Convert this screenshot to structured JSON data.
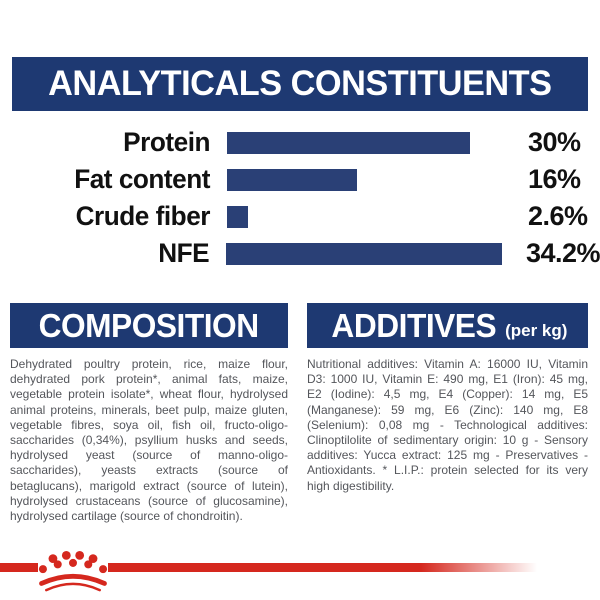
{
  "header": {
    "title": "ANALYTICALS CONSTITUENTS"
  },
  "chart_data": {
    "type": "bar",
    "orientation": "horizontal",
    "title": "ANALYTICALS CONSTITUENTS",
    "categories": [
      "Protein",
      "Fat content",
      "Crude fiber",
      "NFE"
    ],
    "values": [
      30,
      16,
      2.6,
      34.2
    ],
    "value_labels": [
      "30%",
      "16%",
      "2.6%",
      "34.2%"
    ],
    "xlim": [
      0,
      36
    ],
    "grid": false,
    "bar_color": "#2A4076",
    "label_color": "#111111"
  },
  "composition": {
    "title": "COMPOSITION",
    "body": "Dehydrated poultry protein, rice, maize flour, dehydrated pork protein*, animal fats, maize, vegetable protein isolate*, wheat flour, hydrolysed animal proteins, minerals, beet pulp, maize gluten, vegetable fibres, soya oil, fish oil, fructo-oligo-saccharides (0,34%), psyllium husks and seeds, hydrolysed yeast (source of manno-oligo-saccharides), yeasts extracts (source of betaglucans), marigold extract (source of lutein), hydrolysed crustaceans (source of glucosamine), hydrolysed cartilage (source of chondroitin)."
  },
  "additives": {
    "title": "ADDITIVES",
    "title_suffix": "(per kg)",
    "body": "Nutritional additives: Vitamin A: 16000 IU, Vitamin D3: 1000 IU, Vitamin E: 490 mg, E1 (Iron): 45 mg, E2 (Iodine): 4,5 mg, E4 (Copper): 14 mg, E5 (Manganese): 59 mg, E6 (Zinc): 140 mg, E8 (Selenium): 0,08 mg - Technological additives: Clinoptilolite of sedimentary origin: 10 g - Sensory additives: Yucca extract: 125 mg - Preservatives - Antioxidants. * L.I.P.: protein selected for its very high digestibility."
  },
  "footer": {
    "logo": "royal-canin-crown"
  },
  "colors": {
    "navy_header": "#1E3972",
    "navy_bar": "#2A4076",
    "brand_red": "#D5281E",
    "body_text_grey": "#54565B",
    "chart_text_black": "#111111",
    "background": "#FFFFFF"
  }
}
